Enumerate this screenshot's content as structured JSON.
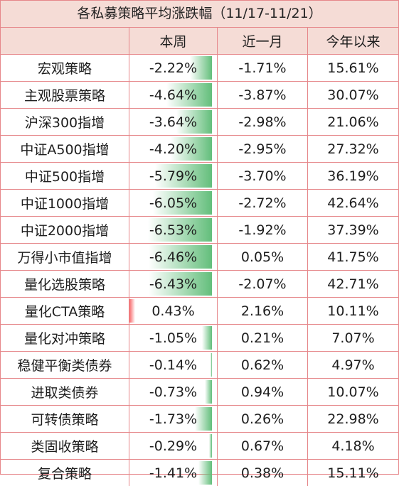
{
  "title": "各私募策略平均涨跌幅（11/17-11/21）",
  "columns": [
    "",
    "本周",
    "近一月",
    "今年以来"
  ],
  "rows": [
    {
      "name": "宏观策略",
      "week": "-2.22%",
      "month": "-1.71%",
      "ytd": "15.61%",
      "week_value": -2.22
    },
    {
      "name": "主观股票策略",
      "week": "-4.64%",
      "month": "-3.87%",
      "ytd": "30.07%",
      "week_value": -4.64
    },
    {
      "name": "沪深300指增",
      "week": "-3.64%",
      "month": "-2.98%",
      "ytd": "21.06%",
      "week_value": -3.64
    },
    {
      "name": "中证A500指增",
      "week": "-4.20%",
      "month": "-2.95%",
      "ytd": "27.32%",
      "week_value": -4.2
    },
    {
      "name": "中证500指增",
      "week": "-5.79%",
      "month": "-3.70%",
      "ytd": "36.19%",
      "week_value": -5.79
    },
    {
      "name": "中证1000指增",
      "week": "-6.05%",
      "month": "-2.72%",
      "ytd": "42.64%",
      "week_value": -6.05
    },
    {
      "name": "中证2000指增",
      "week": "-6.53%",
      "month": "-1.92%",
      "ytd": "37.39%",
      "week_value": -6.53
    },
    {
      "name": "万得小市值指增",
      "week": "-6.46%",
      "month": "0.05%",
      "ytd": "41.75%",
      "week_value": -6.46
    },
    {
      "name": "量化选股策略",
      "week": "-6.43%",
      "month": "-2.07%",
      "ytd": "42.71%",
      "week_value": -6.43
    },
    {
      "name": "量化CTA策略",
      "week": "0.43%",
      "month": "2.16%",
      "ytd": "10.11%",
      "week_value": 0.43
    },
    {
      "name": "量化对冲策略",
      "week": "-1.05%",
      "month": "0.21%",
      "ytd": "7.07%",
      "week_value": -1.05
    },
    {
      "name": "稳健平衡类债券",
      "week": "-0.14%",
      "month": "0.62%",
      "ytd": "4.97%",
      "week_value": -0.14
    },
    {
      "name": "进取类债券",
      "week": "-0.73%",
      "month": "0.94%",
      "ytd": "10.07%",
      "week_value": -0.73
    },
    {
      "name": "可转债策略",
      "week": "-1.73%",
      "month": "0.26%",
      "ytd": "22.98%",
      "week_value": -1.73
    },
    {
      "name": "类固收策略",
      "week": "-0.29%",
      "month": "0.67%",
      "ytd": "4.18%",
      "week_value": -0.29
    },
    {
      "name": "复合策略",
      "week": "-1.41%",
      "month": "0.38%",
      "ytd": "15.11%",
      "week_value": -1.41
    }
  ],
  "colors": {
    "border": "#e6878a",
    "header_bg": "#f5dcd6",
    "negative_bar": "#63be7b",
    "positive_bar": "#f8696b"
  }
}
